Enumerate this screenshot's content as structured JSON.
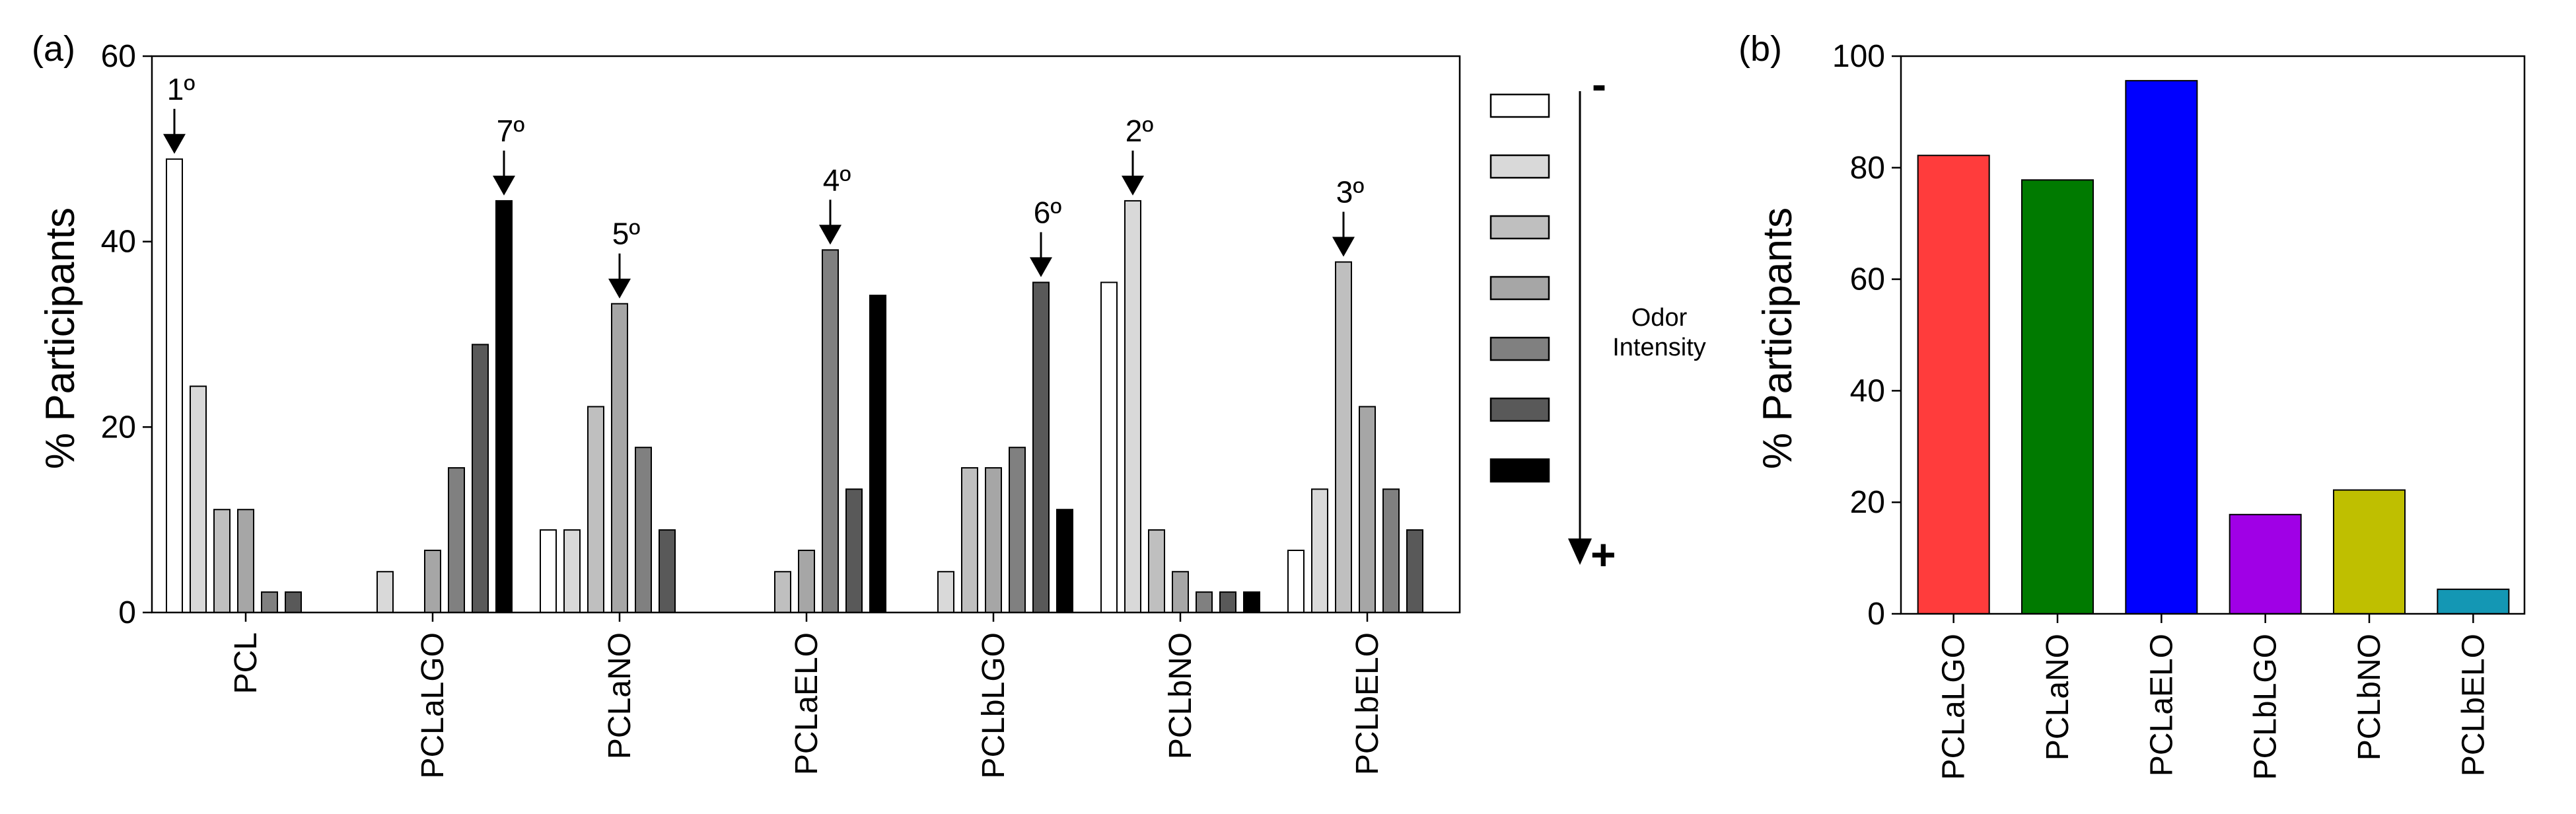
{
  "chart_data": [
    {
      "panel_label": "(a)",
      "type": "bar",
      "ylabel": "% Participants",
      "xlabel": "",
      "ylim": [
        0,
        60
      ],
      "yticks": [
        0,
        20,
        40,
        60
      ],
      "grid": false,
      "categories": [
        "PCL",
        "PCLaLGO",
        "PCLaNO",
        "PCLaELO",
        "PCLbLGO",
        "PCLbNO",
        "PCLbELO"
      ],
      "series": [
        {
          "name": "intensity level 1 (least)",
          "color": "#ffffff",
          "values": [
            48.9,
            0,
            8.9,
            0,
            0,
            35.6,
            6.7
          ]
        },
        {
          "name": "intensity level 2",
          "color": "#d9d9d9",
          "values": [
            24.4,
            4.4,
            8.9,
            0,
            4.4,
            44.4,
            13.3
          ]
        },
        {
          "name": "intensity level 3",
          "color": "#bfbfbf",
          "values": [
            11.1,
            0,
            22.2,
            4.4,
            15.6,
            8.9,
            37.8
          ]
        },
        {
          "name": "intensity level 4",
          "color": "#a6a6a6",
          "values": [
            11.1,
            6.7,
            33.3,
            6.7,
            15.6,
            4.4,
            22.2
          ]
        },
        {
          "name": "intensity level 5",
          "color": "#808080",
          "values": [
            2.2,
            15.6,
            17.8,
            39.1,
            17.8,
            2.2,
            13.3
          ]
        },
        {
          "name": "intensity level 6",
          "color": "#595959",
          "values": [
            2.2,
            28.9,
            8.9,
            13.3,
            35.6,
            2.2,
            8.9
          ]
        },
        {
          "name": "intensity level 7 (most)",
          "color": "#000000",
          "values": [
            0,
            44.4,
            0,
            34.2,
            11.1,
            2.2,
            0
          ]
        }
      ],
      "annotations": [
        {
          "text": "1º",
          "category": "PCL",
          "series_index": 0
        },
        {
          "text": "7º",
          "category": "PCLaLGO",
          "series_index": 6
        },
        {
          "text": "5º",
          "category": "PCLaNO",
          "series_index": 3
        },
        {
          "text": "4º",
          "category": "PCLaELO",
          "series_index": 4
        },
        {
          "text": "6º",
          "category": "PCLbLGO",
          "series_index": 5
        },
        {
          "text": "2º",
          "category": "PCLbNO",
          "series_index": 1
        },
        {
          "text": "3º",
          "category": "PCLbELO",
          "series_index": 2
        }
      ],
      "legend": {
        "placement": "right",
        "label": [
          "Odor",
          "Intensity"
        ],
        "low_symbol": "-",
        "high_symbol": "+"
      }
    },
    {
      "panel_label": "(b)",
      "type": "bar",
      "ylabel": "% Participants",
      "xlabel": "",
      "ylim": [
        0,
        100
      ],
      "yticks": [
        0,
        20,
        40,
        60,
        80,
        100
      ],
      "grid": false,
      "categories": [
        "PCLaLGO",
        "PCLaNO",
        "PCLaELO",
        "PCLbLGO",
        "PCLbNO",
        "PCLbELO"
      ],
      "values": [
        82.2,
        77.8,
        95.6,
        17.8,
        22.2,
        4.4
      ],
      "colors": [
        "#ff3c3c",
        "#007a00",
        "#0000ff",
        "#a000e6",
        "#bfbf00",
        "#1497b4"
      ]
    }
  ]
}
